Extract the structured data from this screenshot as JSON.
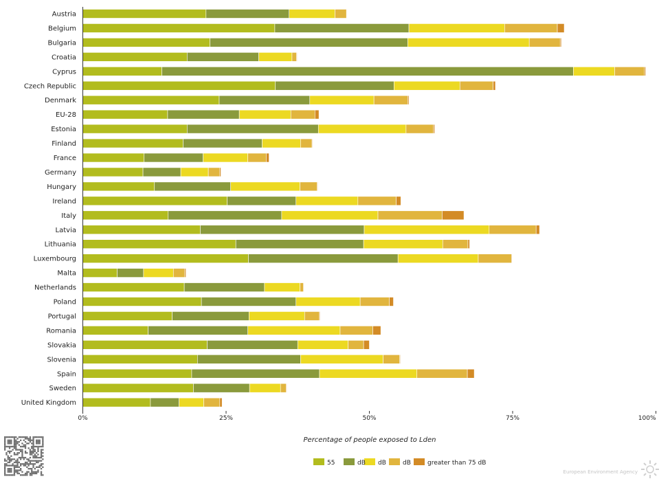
{
  "chart_data": {
    "type": "bar",
    "orientation": "horizontal",
    "stacked": true,
    "categories": [
      "Austria",
      "Belgium",
      "Bulgaria",
      "Croatia",
      "Cyprus",
      "Czech Republic",
      "Denmark",
      "EU-28",
      "Estonia",
      "Finland",
      "France",
      "Germany",
      "Hungary",
      "Ireland",
      "Italy",
      "Latvia",
      "Lithuania",
      "Luxembourg",
      "Malta",
      "Netherlands",
      "Poland",
      "Portugal",
      "Romania",
      "Slovakia",
      "Slovenia",
      "Spain",
      "Sweden",
      "United Kingdom"
    ],
    "series": [
      {
        "name": "55",
        "color": "#b2bc1e",
        "values": [
          21.5,
          33.5,
          22.2,
          18.2,
          13.8,
          33.6,
          23.8,
          14.8,
          18.2,
          17.5,
          10.7,
          10.5,
          12.5,
          25.2,
          14.9,
          20.5,
          26.7,
          28.9,
          6.0,
          17.7,
          20.7,
          15.6,
          11.4,
          21.7,
          20.0,
          19.0,
          19.3,
          11.8
        ]
      },
      {
        "name": "dB",
        "color": "#8a9a3c",
        "values": [
          14.5,
          23.4,
          34.5,
          12.5,
          71.8,
          20.7,
          15.8,
          12.5,
          22.9,
          13.8,
          10.3,
          6.6,
          13.3,
          12.0,
          19.8,
          28.6,
          22.3,
          26.1,
          4.6,
          14.0,
          16.5,
          13.4,
          17.4,
          15.8,
          18.0,
          22.3,
          9.8,
          5.0
        ]
      },
      {
        "name": "dB",
        "color": "#ecd922",
        "values": [
          8.0,
          16.7,
          21.2,
          5.8,
          7.2,
          11.5,
          11.2,
          9.0,
          15.3,
          6.7,
          7.8,
          4.8,
          12.1,
          10.8,
          16.8,
          21.8,
          13.8,
          14.0,
          5.2,
          6.2,
          11.2,
          9.7,
          16.1,
          8.8,
          14.4,
          17.0,
          5.4,
          4.3
        ]
      },
      {
        "name": "dB",
        "color": "#e1b53e",
        "values": [
          2.0,
          9.2,
          5.4,
          0.8,
          5.2,
          5.8,
          5.9,
          4.2,
          4.8,
          2.0,
          3.2,
          2.0,
          3.0,
          6.7,
          11.2,
          8.2,
          4.4,
          5.8,
          2.0,
          0.6,
          5.1,
          2.6,
          5.7,
          2.7,
          2.9,
          8.8,
          1.0,
          2.8
        ]
      },
      {
        "name": "greater than 75 dB",
        "color": "#d38b26",
        "values": [
          0.0,
          1.2,
          0.2,
          0.1,
          0.2,
          0.4,
          0.2,
          0.7,
          0.2,
          0.1,
          0.5,
          0.2,
          0.1,
          0.8,
          3.8,
          0.6,
          0.3,
          0.1,
          0.2,
          0.0,
          0.7,
          0.1,
          1.4,
          1.0,
          0.1,
          1.2,
          0.1,
          0.4
        ]
      }
    ],
    "xlabel": "Percentage of people exposed to Lden",
    "ylabel": "",
    "xlim": [
      0,
      100
    ],
    "xticks": [
      "0%",
      "25%",
      "50%",
      "75%",
      "100%"
    ],
    "grid": false,
    "legend_position": "bottom-center"
  },
  "footer": {
    "brand": "European Environment Agency",
    "qr_icon": "qr-code-icon",
    "logo_icon": "eea-sun-logo-icon"
  }
}
